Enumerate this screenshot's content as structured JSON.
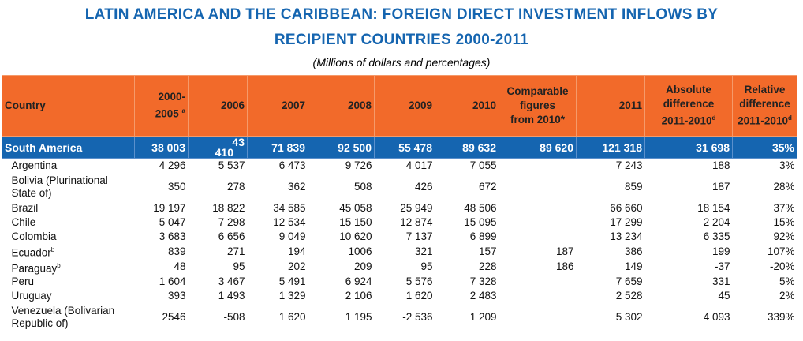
{
  "title_line1": "LATIN AMERICA AND THE CARIBBEAN: FOREIGN DIRECT INVESTMENT INFLOWS BY",
  "title_line2": "RECIPIENT COUNTRIES 2000-2011",
  "subtitle": "(Millions of dollars and percentages)",
  "headers": {
    "country": "Country",
    "h0": "2000-",
    "h0b": "2005",
    "h0sup": "a",
    "y2006": "2006",
    "y2007": "2007",
    "y2008": "2008",
    "y2009": "2009",
    "y2010": "2010",
    "comp1": "Comparable",
    "comp2": "figures",
    "comp3": "from 2010*",
    "y2011": "2011",
    "abs1": "Absolute",
    "abs2": "difference",
    "abs3": "2011-2010",
    "abs_sup": "d",
    "rel1": "Relative",
    "rel2": "difference",
    "rel3": "2011-2010",
    "rel_sup": "d"
  },
  "south_america": {
    "name": "South America",
    "v0": "38 003",
    "v1a": "43",
    "v1b": "410",
    "v2": "71 839",
    "v3": "92 500",
    "v4": "55 478",
    "v5": "89 632",
    "v6": "89 620",
    "v7": "121 318",
    "v8": "31 698",
    "v9": "35%"
  },
  "rows": [
    {
      "name": "Argentina",
      "sup": "",
      "v": [
        "4 296",
        "5 537",
        "6 473",
        "9 726",
        "4 017",
        "7 055",
        "",
        "7 243",
        "188",
        "3%"
      ]
    },
    {
      "name": "Bolivia (Plurinational State of)",
      "sup": "",
      "v": [
        "350",
        "278",
        "362",
        "508",
        "426",
        "672",
        "",
        "859",
        "187",
        "28%"
      ]
    },
    {
      "name": "Brazil",
      "sup": "",
      "v": [
        "19 197",
        "18 822",
        "34 585",
        "45 058",
        "25 949",
        "48 506",
        "",
        "66 660",
        "18 154",
        "37%"
      ]
    },
    {
      "name": "Chile",
      "sup": "",
      "v": [
        "5 047",
        "7 298",
        "12 534",
        "15 150",
        "12 874",
        "15 095",
        "",
        "17 299",
        "2 204",
        "15%"
      ]
    },
    {
      "name": "Colombia",
      "sup": "",
      "v": [
        "3 683",
        "6 656",
        "9 049",
        "10 620",
        "7 137",
        "6 899",
        "",
        "13 234",
        "6 335",
        "92%"
      ]
    },
    {
      "name": "Ecuador",
      "sup": "b",
      "v": [
        "839",
        "271",
        "194",
        "1006",
        "321",
        "157",
        "187",
        "386",
        "199",
        "107%"
      ]
    },
    {
      "name": "Paraguay",
      "sup": "b",
      "v": [
        "48",
        "95",
        "202",
        "209",
        "95",
        "228",
        "186",
        "149",
        "-37",
        "-20%"
      ]
    },
    {
      "name": "Peru",
      "sup": "",
      "v": [
        "1 604",
        "3 467",
        "5 491",
        "6 924",
        "5 576",
        "7 328",
        "",
        "7 659",
        "331",
        "5%"
      ]
    },
    {
      "name": "Uruguay",
      "sup": "",
      "v": [
        "393",
        "1 493",
        "1 329",
        "2 106",
        "1 620",
        "2 483",
        "",
        "2 528",
        "45",
        "2%"
      ]
    },
    {
      "name": "Venezuela (Bolivarian Republic of)",
      "sup": "",
      "v": [
        "2546",
        "-508",
        "1 620",
        "1 195",
        "-2 536",
        "1 209",
        "",
        "5 302",
        "4 093",
        "339%"
      ]
    }
  ]
}
